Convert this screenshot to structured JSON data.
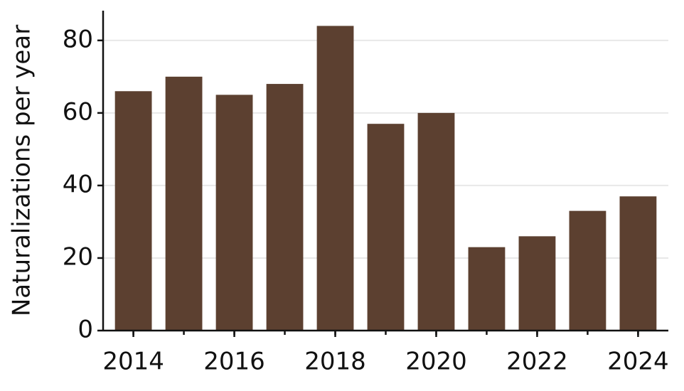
{
  "chart_data": {
    "type": "bar",
    "y_label": "Naturalizations per year",
    "x": [
      2014,
      2015,
      2016,
      2017,
      2018,
      2019,
      2020,
      2021,
      2022,
      2023,
      2024
    ],
    "values": [
      66,
      70,
      65,
      68,
      84,
      57,
      60,
      23,
      26,
      33,
      37
    ],
    "color": "#5c4030",
    "xlim": [
      2013.4,
      2024.6
    ],
    "xticks": [
      2014,
      2016,
      2018,
      2020,
      2022,
      2024
    ],
    "ylim": [
      0,
      88.2
    ],
    "yticks": [
      0,
      20,
      40,
      60,
      80
    ],
    "grid": true
  }
}
